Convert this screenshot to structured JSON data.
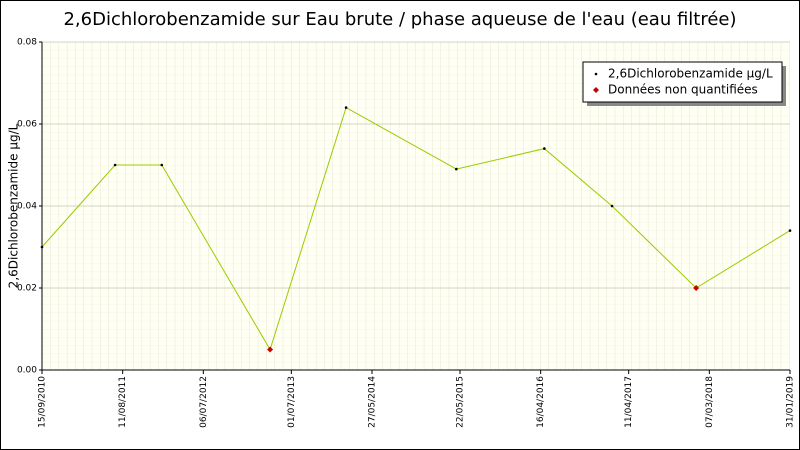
{
  "chart_data": {
    "type": "line",
    "title": "2,6Dichlorobenzamide sur Eau brute / phase aqueuse de l'eau (eau filtrée)",
    "y_label": "2,6Dichlorobenzamide µg/L",
    "x": [
      "2010-09-15",
      "2011-07-11",
      "2012-01-18",
      "2013-04-05",
      "2014-02-10",
      "2015-05-07",
      "2016-05-01",
      "2017-02-02",
      "2018-01-12",
      "2019-01-31"
    ],
    "series": [
      {
        "name": "2,6Dichlorobenzamide µg/L",
        "color": "#99cc00",
        "marker_color": "#000000",
        "values": [
          0.03,
          0.05,
          0.05,
          0.005,
          0.064,
          0.049,
          0.054,
          0.04,
          0.02,
          0.034
        ]
      },
      {
        "name": "Données non quantifiées",
        "color": "#cc0000",
        "values": [
          null,
          null,
          null,
          0.005,
          null,
          null,
          null,
          null,
          0.02,
          null
        ]
      }
    ],
    "xlim": [
      "2010-09-15",
      "2019-01-31"
    ],
    "xticks": [
      {
        "value": "2010-09-15",
        "label": "15/09/2010"
      },
      {
        "value": "2011-08-11",
        "label": "11/08/2011"
      },
      {
        "value": "2012-07-06",
        "label": "06/07/2012"
      },
      {
        "value": "2013-07-01",
        "label": "01/07/2013"
      },
      {
        "value": "2014-05-27",
        "label": "27/05/2014"
      },
      {
        "value": "2015-05-22",
        "label": "22/05/2015"
      },
      {
        "value": "2016-04-16",
        "label": "16/04/2016"
      },
      {
        "value": "2017-04-11",
        "label": "11/04/2017"
      },
      {
        "value": "2018-03-07",
        "label": "07/03/2018"
      },
      {
        "value": "2019-01-31",
        "label": "31/01/2019"
      }
    ],
    "ylim": [
      0,
      0.08
    ],
    "yticks": [
      {
        "value": 0,
        "label": "0.00"
      },
      0.02,
      0.04,
      0.06,
      0.08
    ],
    "grid": true
  }
}
